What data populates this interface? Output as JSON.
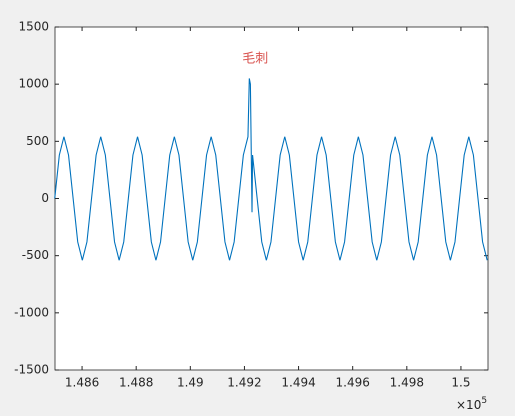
{
  "chart_data": {
    "type": "line",
    "x": [
      148499,
      148516,
      148533,
      148550,
      148567,
      148584,
      148601,
      148618,
      148635,
      148652,
      148669,
      148686,
      148703,
      148720,
      148737,
      148754,
      148771,
      148788,
      148805,
      148822,
      148839,
      148856,
      148873,
      148890,
      148907,
      148924,
      148941,
      148958,
      148975,
      148992,
      149009,
      149026,
      149043,
      149060,
      149077,
      149094,
      149111,
      149128,
      149145,
      149162,
      149179,
      149196,
      149213,
      149218,
      149222,
      149228,
      149230,
      149247,
      149264,
      149281,
      149298,
      149315,
      149332,
      149349,
      149366,
      149383,
      149400,
      149417,
      149434,
      149451,
      149468,
      149485,
      149502,
      149519,
      149536,
      149553,
      149570,
      149587,
      149604,
      149621,
      149638,
      149655,
      149672,
      149689,
      149706,
      149723,
      149740,
      149757,
      149774,
      149791,
      149808,
      149825,
      149842,
      149859,
      149876,
      149893,
      149910,
      149927,
      149944,
      149961,
      149978,
      149995,
      150012,
      150029,
      150046,
      150063,
      150080,
      150097
    ],
    "series": [
      {
        "color": "#0072bd",
        "values": [
          0,
          380,
          540,
          380,
          0,
          -380,
          -540,
          -380,
          0,
          380,
          540,
          380,
          0,
          -380,
          -540,
          -380,
          0,
          380,
          540,
          380,
          0,
          -380,
          -540,
          -380,
          0,
          380,
          540,
          380,
          0,
          -380,
          -540,
          -380,
          0,
          380,
          540,
          380,
          0,
          -380,
          -540,
          -380,
          0,
          380,
          540,
          1050,
          1000,
          -120,
          380,
          0,
          -380,
          -540,
          -380,
          0,
          380,
          540,
          380,
          0,
          -380,
          -540,
          -380,
          0,
          380,
          540,
          380,
          0,
          -380,
          -540,
          -380,
          0,
          380,
          540,
          380,
          0,
          -380,
          -540,
          -380,
          0,
          380,
          540,
          380,
          0,
          -380,
          -540,
          -380,
          0,
          380,
          540,
          380,
          0,
          -380,
          -540,
          -380,
          0,
          380,
          540,
          380,
          0,
          -380,
          -540
        ]
      }
    ],
    "xlim": [
      148500,
      150100
    ],
    "ylim": [
      -1500,
      1500
    ],
    "xticks": [
      {
        "value": 148600,
        "label": "1.486"
      },
      {
        "value": 148800,
        "label": "1.488"
      },
      {
        "value": 149000,
        "label": "1.49"
      },
      {
        "value": 149200,
        "label": "1.492"
      },
      {
        "value": 149400,
        "label": "1.494"
      },
      {
        "value": 149600,
        "label": "1.496"
      },
      {
        "value": 149800,
        "label": "1.498"
      },
      {
        "value": 150000,
        "label": "1.5"
      }
    ],
    "yticks": [
      -1500,
      -1000,
      -500,
      0,
      500,
      1000,
      1500
    ],
    "x_exponent": {
      "base": "×10",
      "power": "5"
    },
    "annotation": {
      "text": "毛刺",
      "x": 149240,
      "y": 1220,
      "color": "#d9534f"
    },
    "grid": false
  }
}
